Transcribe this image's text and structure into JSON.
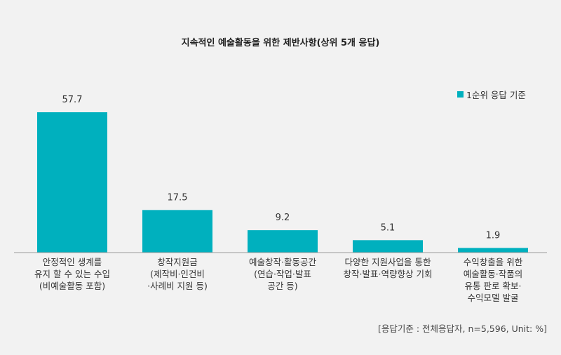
{
  "chart_data": {
    "type": "bar",
    "title": "지속적인 예술활동을 위한 제반사항(상위 5개 응답)",
    "categories": [
      [
        "안정적인 생계를",
        "유지 할 수 있는 수입",
        "(비예술활동 포함)"
      ],
      [
        "창작지원금",
        "(제작비·인건비",
        "·사례비 지원 등)"
      ],
      [
        "예술창작·활동공간",
        "(연습·작업·발표",
        "공간 등)"
      ],
      [
        "다양한 지원사업을 통한",
        "창작·발표·역량향상 기회"
      ],
      [
        "수익창출을 위한",
        "예술활동·작품의",
        "유통 판로 확보·",
        "수익모델 발굴"
      ]
    ],
    "series": [
      {
        "name": "1순위 응답 기준",
        "values": [
          57.7,
          17.5,
          9.2,
          5.1,
          1.9
        ],
        "color": "#00b0be"
      }
    ],
    "value_labels": [
      "57.7",
      "17.5",
      "9.2",
      "5.1",
      "1.9"
    ],
    "ylim": [
      0,
      60
    ],
    "legend_position": "top-right",
    "grid": false,
    "footnote": "[응답기준 : 전체응답자, n=5,596, Unit: %]"
  }
}
